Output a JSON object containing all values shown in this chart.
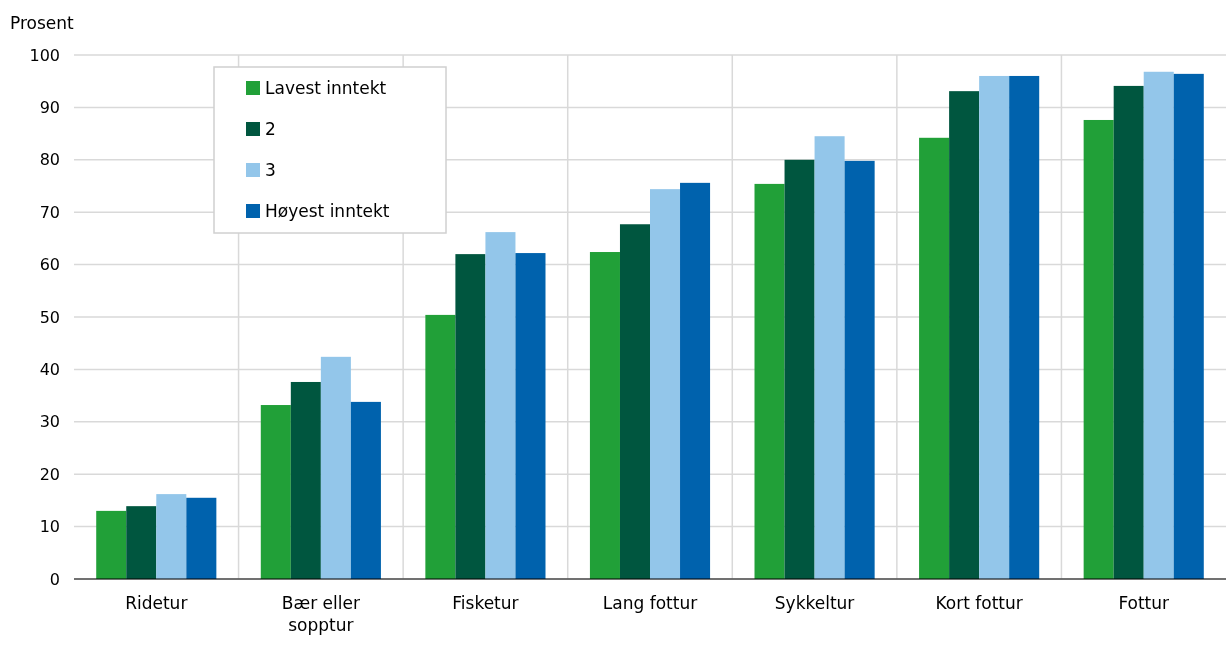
{
  "chart_data": {
    "type": "bar",
    "ylabel": "Prosent",
    "categories": [
      "Ridetur",
      "Bær eller sopptur",
      "Fisketur",
      "Lang fottur",
      "Sykkeltur",
      "Kort fottur",
      "Fottur"
    ],
    "series": [
      {
        "name": "Lavest inntekt",
        "color": "#21a038",
        "values": [
          13.0,
          33.2,
          50.4,
          62.4,
          75.4,
          84.2,
          87.6
        ]
      },
      {
        "name": "2",
        "color": "#00563f",
        "values": [
          13.9,
          37.6,
          62.0,
          67.7,
          80.0,
          93.1,
          94.1
        ]
      },
      {
        "name": "3",
        "color": "#93c6ea",
        "values": [
          16.2,
          42.4,
          66.2,
          74.4,
          84.5,
          96.0,
          96.8
        ]
      },
      {
        "name": "Høyest inntekt",
        "color": "#0062ad",
        "values": [
          15.5,
          33.8,
          62.2,
          75.6,
          79.8,
          96.0,
          96.4
        ]
      }
    ],
    "ylim": [
      0,
      100
    ],
    "yticks": [
      0,
      10,
      20,
      30,
      40,
      50,
      60,
      70,
      80,
      90,
      100
    ],
    "grid": true,
    "legend": "top left"
  }
}
